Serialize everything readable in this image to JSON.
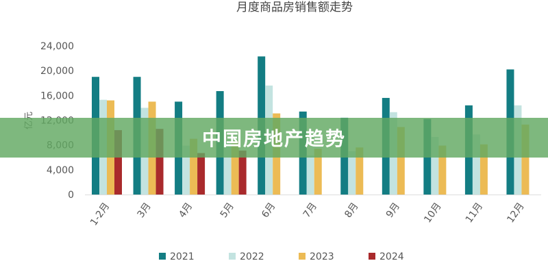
{
  "chart_data": {
    "type": "bar",
    "title": "月度商品房销售额走势",
    "ylabel": "亿元",
    "ylim": [
      0,
      24000
    ],
    "yticks": [
      "0",
      "4,000",
      "8,000",
      "12,000",
      "16,000",
      "20,000",
      "24,000"
    ],
    "categories": [
      "1-2月",
      "3月",
      "4月",
      "5月",
      "6月",
      "7月",
      "8月",
      "9月",
      "10月",
      "11月",
      "12月"
    ],
    "series": [
      {
        "name": "2021",
        "color": "#137d83",
        "values": [
          19000,
          19000,
          15000,
          16700,
          22300,
          13400,
          12400,
          15600,
          12200,
          14400,
          20200
        ]
      },
      {
        "name": "2022",
        "color": "#c3e3e0",
        "values": [
          15300,
          14000,
          7900,
          8500,
          17600,
          6300,
          7000,
          13300,
          9300,
          9700,
          14400
        ]
      },
      {
        "name": "2023",
        "color": "#ecbb55",
        "values": [
          15200,
          15000,
          9000,
          8700,
          13100,
          7400,
          7600,
          10900,
          7900,
          8100,
          11300
        ]
      },
      {
        "name": "2024",
        "color": "#a92a2c",
        "values": [
          10400,
          10600,
          6700,
          7100,
          null,
          null,
          null,
          null,
          null,
          null,
          null
        ]
      }
    ],
    "grid": false,
    "legend": "bottom"
  },
  "banner": {
    "text": "中国房地产趋势"
  }
}
